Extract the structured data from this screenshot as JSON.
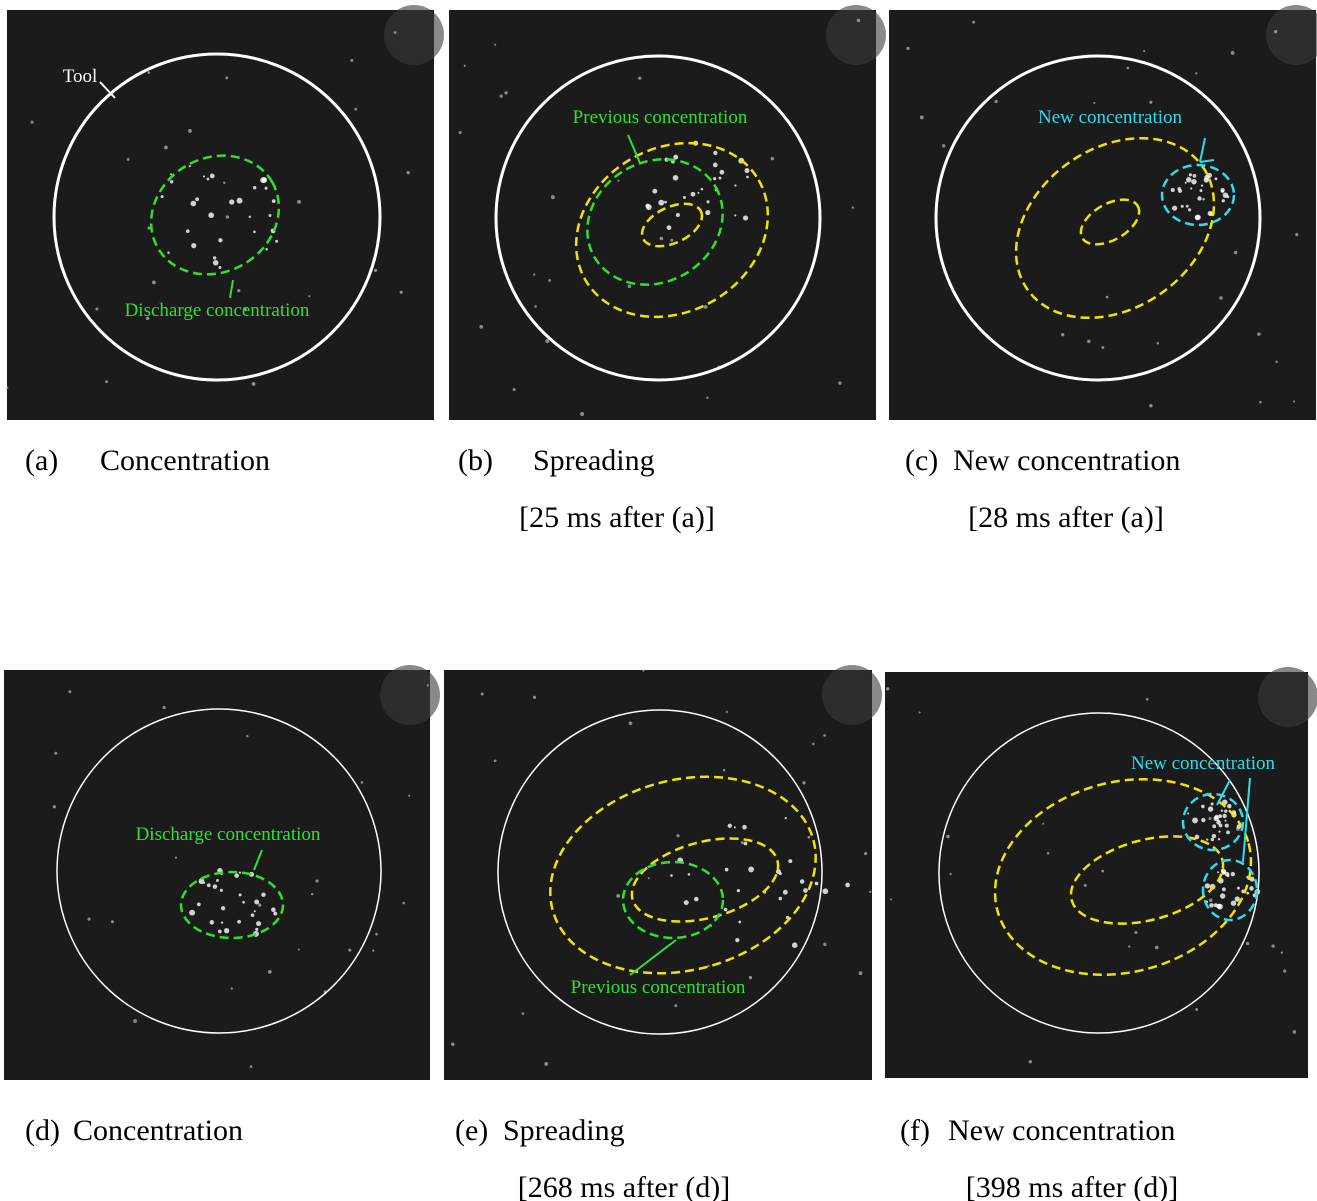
{
  "panels": [
    {
      "letter": "(a)",
      "caption": "Concentration",
      "annotations": [
        "Tool",
        "Discharge concentration"
      ]
    },
    {
      "letter": "(b)",
      "caption": "Spreading",
      "time": "[25 ms after (a)]",
      "annotations": [
        "Previous concentration"
      ]
    },
    {
      "letter": "(c)",
      "caption": "New concentration",
      "time": "[28 ms after (a)]",
      "annotations": [
        "New concentration"
      ]
    },
    {
      "letter": "(d)",
      "caption": "Concentration",
      "annotations": [
        "Discharge concentration"
      ]
    },
    {
      "letter": "(e)",
      "caption": "Spreading",
      "time": "[268 ms after (d)]",
      "annotations": [
        "Previous concentration"
      ]
    },
    {
      "letter": "(f)",
      "caption": "New concentration",
      "time": "[398 ms after (d)]",
      "annotations": [
        "New concentration"
      ]
    }
  ]
}
